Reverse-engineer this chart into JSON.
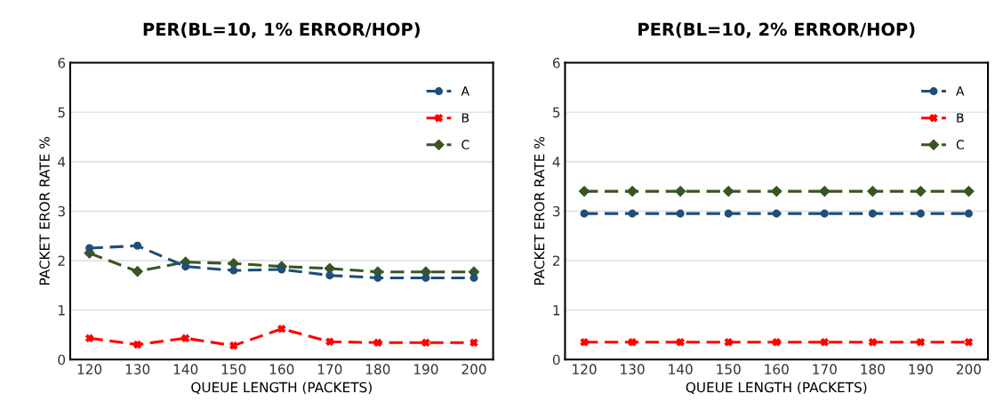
{
  "chart_data": [
    {
      "type": "line",
      "title": "PER(BL=10, 1% ERROR/HOP)",
      "xlabel": "QUEUE LENGTH (PACKETS)",
      "ylabel": "PACKET EROR RATE %",
      "categories": [
        "120",
        "130",
        "140",
        "150",
        "160",
        "170",
        "180",
        "190",
        "200"
      ],
      "ylim": [
        0,
        6
      ],
      "yticks": [
        0,
        1,
        2,
        3,
        4,
        5,
        6
      ],
      "grid": "y",
      "legend": "top right",
      "series": [
        {
          "name": "A",
          "color": "#1f4e79",
          "marker": "circle",
          "line_style": "dashed",
          "values": [
            2.25,
            2.3,
            1.88,
            1.8,
            1.82,
            1.7,
            1.65,
            1.65,
            1.65
          ]
        },
        {
          "name": "B",
          "color": "#ff0000",
          "marker": "cross",
          "line_style": "dashed",
          "values": [
            0.43,
            0.3,
            0.43,
            0.28,
            0.62,
            0.36,
            0.34,
            0.34,
            0.34
          ]
        },
        {
          "name": "C",
          "color": "#375623",
          "marker": "diamond",
          "line_style": "dashed",
          "values": [
            2.15,
            1.78,
            1.97,
            1.94,
            1.88,
            1.84,
            1.77,
            1.77,
            1.77
          ]
        }
      ]
    },
    {
      "type": "line",
      "title": "PER(BL=10, 2% ERROR/HOP)",
      "xlabel": "QUEUE LENGTH (PACKETS)",
      "ylabel": "PACKET EROR RATE %",
      "categories": [
        "120",
        "130",
        "140",
        "150",
        "160",
        "170",
        "180",
        "190",
        "200"
      ],
      "ylim": [
        0,
        6
      ],
      "yticks": [
        0,
        1,
        2,
        3,
        4,
        5,
        6
      ],
      "grid": "y",
      "legend": "top right",
      "series": [
        {
          "name": "A",
          "color": "#1f4e79",
          "marker": "circle",
          "line_style": "dashed",
          "values": [
            2.95,
            2.95,
            2.95,
            2.95,
            2.95,
            2.95,
            2.95,
            2.95,
            2.95
          ]
        },
        {
          "name": "B",
          "color": "#ff0000",
          "marker": "cross",
          "line_style": "dashed",
          "values": [
            0.35,
            0.35,
            0.35,
            0.35,
            0.35,
            0.35,
            0.35,
            0.35,
            0.35
          ]
        },
        {
          "name": "C",
          "color": "#375623",
          "marker": "diamond",
          "line_style": "dashed",
          "values": [
            3.4,
            3.4,
            3.4,
            3.4,
            3.4,
            3.4,
            3.4,
            3.4,
            3.4
          ]
        }
      ]
    }
  ]
}
